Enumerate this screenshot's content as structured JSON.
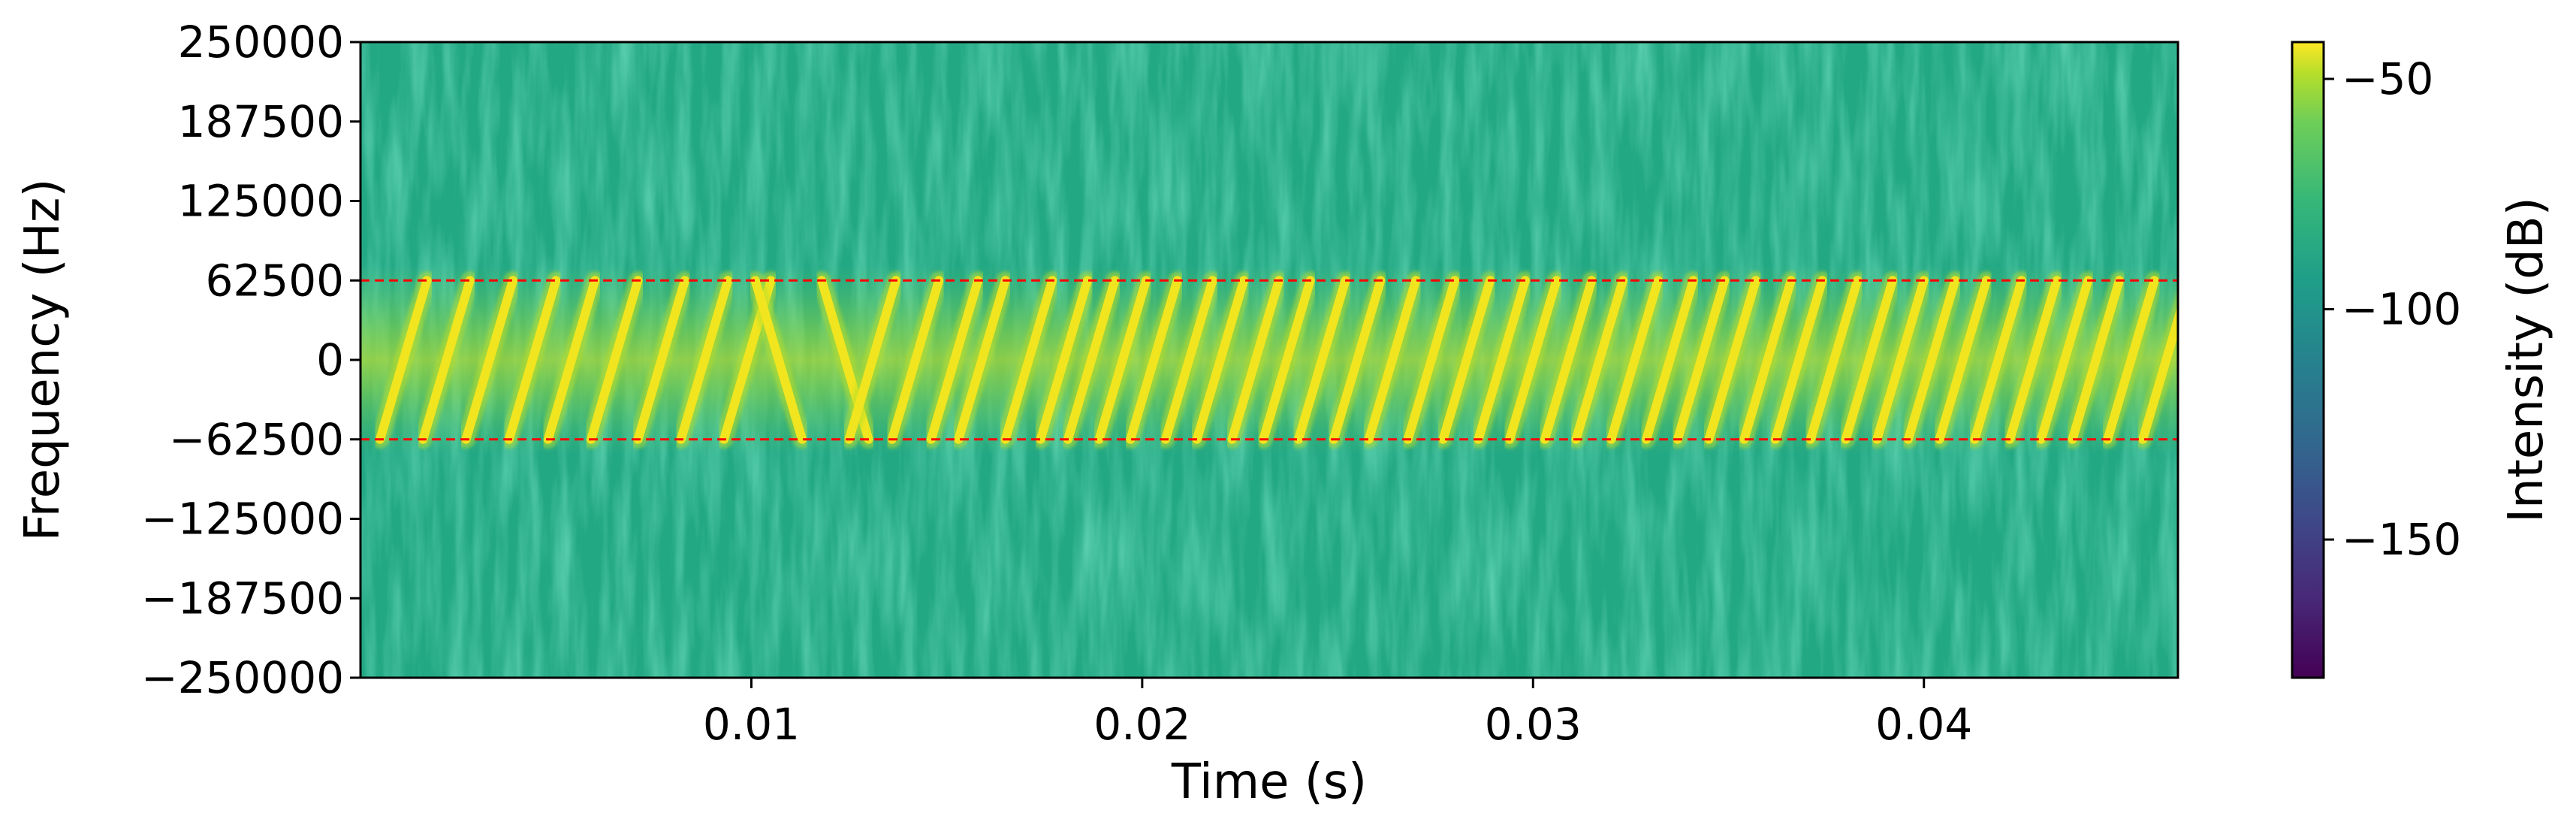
{
  "chart_data": {
    "type": "heatmap",
    "subtype": "spectrogram",
    "xlabel": "Time (s)",
    "ylabel": "Frequency (Hz)",
    "xlim": [
      0,
      0.0465
    ],
    "ylim": [
      -250000,
      250000
    ],
    "xticks": [
      0.01,
      0.02,
      0.03,
      0.04
    ],
    "xtick_labels": [
      "0.01",
      "0.02",
      "0.03",
      "0.04"
    ],
    "yticks": [
      250000,
      187500,
      125000,
      62500,
      0,
      -62500,
      -125000,
      -187500,
      -250000
    ],
    "ytick_labels": [
      "250000",
      "187500",
      "125000",
      "62500",
      "0",
      "−62500",
      "−125000",
      "−187500",
      "−250000"
    ],
    "colormap": "viridis",
    "colorbar": {
      "label": "Intensity (dB)",
      "range": [
        -180,
        -42
      ],
      "ticks": [
        -50,
        -100,
        -150
      ],
      "tick_labels": [
        "−50",
        "−100",
        "−150"
      ]
    },
    "background_level_db": -95,
    "signal_level_db": -45,
    "signal_band_hz": [
      -62500,
      62500
    ],
    "reference_lines": [
      {
        "y": 62500,
        "color": "#ff0000",
        "style": "dashed"
      },
      {
        "y": -62500,
        "color": "#ff0000",
        "style": "dashed"
      }
    ],
    "chirp_sweeps": [
      {
        "t": 0.0005,
        "dir": "up"
      },
      {
        "t": 0.0016,
        "dir": "up"
      },
      {
        "t": 0.0027,
        "dir": "up"
      },
      {
        "t": 0.0038,
        "dir": "up"
      },
      {
        "t": 0.0048,
        "dir": "up"
      },
      {
        "t": 0.0059,
        "dir": "up"
      },
      {
        "t": 0.0071,
        "dir": "up"
      },
      {
        "t": 0.0082,
        "dir": "up"
      },
      {
        "t": 0.0093,
        "dir": "up"
      },
      {
        "t": 0.0101,
        "dir": "down"
      },
      {
        "t": 0.0118,
        "dir": "down"
      },
      {
        "t": 0.0125,
        "dir": "up"
      },
      {
        "t": 0.0136,
        "dir": "up"
      },
      {
        "t": 0.0146,
        "dir": "up"
      },
      {
        "t": 0.0153,
        "dir": "up"
      },
      {
        "t": 0.0165,
        "dir": "up"
      },
      {
        "t": 0.0174,
        "dir": "up"
      },
      {
        "t": 0.0181,
        "dir": "up"
      },
      {
        "t": 0.0189,
        "dir": "up"
      },
      {
        "t": 0.0197,
        "dir": "up"
      },
      {
        "t": 0.0206,
        "dir": "up"
      },
      {
        "t": 0.0214,
        "dir": "up"
      },
      {
        "t": 0.0223,
        "dir": "up"
      },
      {
        "t": 0.0231,
        "dir": "up"
      },
      {
        "t": 0.024,
        "dir": "up"
      },
      {
        "t": 0.0249,
        "dir": "up"
      },
      {
        "t": 0.0258,
        "dir": "up"
      },
      {
        "t": 0.0268,
        "dir": "up"
      },
      {
        "t": 0.0277,
        "dir": "up"
      },
      {
        "t": 0.0286,
        "dir": "up"
      },
      {
        "t": 0.0294,
        "dir": "up"
      },
      {
        "t": 0.0303,
        "dir": "up"
      },
      {
        "t": 0.0311,
        "dir": "up"
      },
      {
        "t": 0.032,
        "dir": "up"
      },
      {
        "t": 0.0329,
        "dir": "up"
      },
      {
        "t": 0.0337,
        "dir": "up"
      },
      {
        "t": 0.0345,
        "dir": "up"
      },
      {
        "t": 0.0354,
        "dir": "up"
      },
      {
        "t": 0.0362,
        "dir": "up"
      },
      {
        "t": 0.0371,
        "dir": "up"
      },
      {
        "t": 0.038,
        "dir": "up"
      },
      {
        "t": 0.0388,
        "dir": "up"
      },
      {
        "t": 0.0396,
        "dir": "up"
      },
      {
        "t": 0.0404,
        "dir": "up"
      },
      {
        "t": 0.0413,
        "dir": "up"
      },
      {
        "t": 0.0422,
        "dir": "up"
      },
      {
        "t": 0.043,
        "dir": "up"
      },
      {
        "t": 0.0438,
        "dir": "up"
      },
      {
        "t": 0.0447,
        "dir": "up"
      },
      {
        "t": 0.0456,
        "dir": "up"
      }
    ],
    "sweep_duration_s": 0.0012,
    "colors": {
      "signal": "#f0e51f",
      "signal_mid": "#b8de29",
      "background": "#23a884",
      "reference_line": "#ff0000"
    }
  }
}
